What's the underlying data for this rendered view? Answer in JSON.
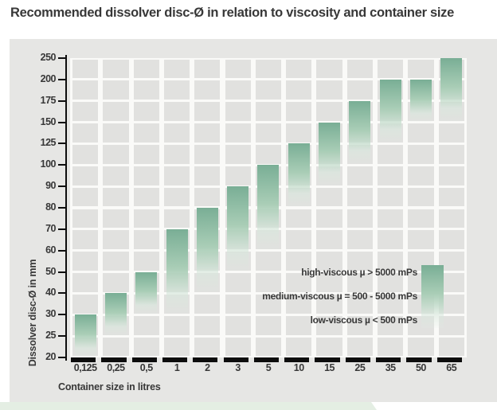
{
  "page": {
    "title": "Recommended dissolver disc-Ø in relation to viscosity and container size"
  },
  "chart_data": {
    "type": "bar",
    "subtype": "floating-range-bars-with-vertical-fade-gradient",
    "title": "Recommended dissolver disc-Ø in relation to viscosity and container size",
    "xlabel": "Container size in litres",
    "ylabel": "Dissolver disc-Ø in mm",
    "y_ticks": [
      250,
      200,
      175,
      150,
      125,
      100,
      90,
      80,
      70,
      60,
      50,
      40,
      30,
      25,
      20
    ],
    "y_scale_note": "ordinal axis - equal pixel spacing between listed tick values, 250 at top, 20 at baseline",
    "categories": [
      "0,125",
      "0,25",
      "0,5",
      "1",
      "2",
      "3",
      "5",
      "10",
      "15",
      "25",
      "35",
      "50",
      "65"
    ],
    "bars": [
      {
        "container_litres": "0,125",
        "disc_mm_low": 20,
        "disc_mm_high": 30
      },
      {
        "container_litres": "0,25",
        "disc_mm_low": 25,
        "disc_mm_high": 40
      },
      {
        "container_litres": "0,5",
        "disc_mm_low": 30,
        "disc_mm_high": 50
      },
      {
        "container_litres": "1",
        "disc_mm_low": 30,
        "disc_mm_high": 70
      },
      {
        "container_litres": "2",
        "disc_mm_low": 40,
        "disc_mm_high": 80
      },
      {
        "container_litres": "3",
        "disc_mm_low": 50,
        "disc_mm_high": 90
      },
      {
        "container_litres": "5",
        "disc_mm_low": 60,
        "disc_mm_high": 100
      },
      {
        "container_litres": "10",
        "disc_mm_low": 80,
        "disc_mm_high": 125
      },
      {
        "container_litres": "15",
        "disc_mm_low": 90,
        "disc_mm_high": 150
      },
      {
        "container_litres": "25",
        "disc_mm_low": 100,
        "disc_mm_high": 175
      },
      {
        "container_litres": "35",
        "disc_mm_low": 125,
        "disc_mm_high": 200
      },
      {
        "container_litres": "50",
        "disc_mm_low": 150,
        "disc_mm_high": 200
      },
      {
        "container_litres": "65",
        "disc_mm_low": 150,
        "disc_mm_high": 250
      }
    ],
    "bar_gradient_note": "bar top (solid green) = high-viscous recommendation, fading light bottom = low-viscous recommendation",
    "legend": [
      "high-viscous µ > 5000 mPs",
      "medium-viscous µ = 500 - 5000 mPs",
      "low-viscous µ < 500 mPs"
    ],
    "legend_position": "inside lower right with gradient swatch",
    "grid": "on",
    "colors": {
      "bar-top": "#79ae95",
      "bar-mid": "#a9cdb6",
      "bar-fade": "#dfece4",
      "panel-bg": "#e6e6e4",
      "cell-bg": "#e1e1df",
      "grid-line": "#fafaf8",
      "axis-line": "#0d0d0d",
      "text": "#383838",
      "accent-strip": "#e4eee3"
    }
  }
}
